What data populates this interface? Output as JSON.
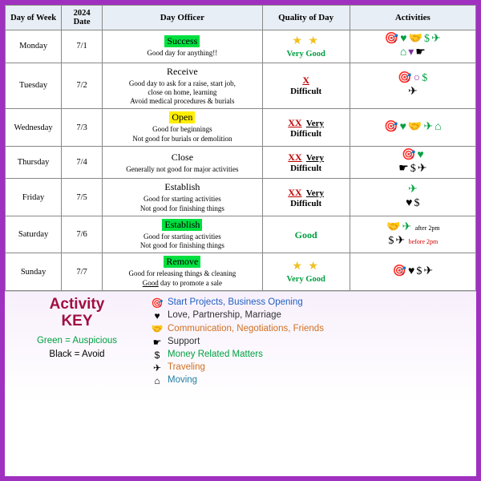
{
  "headers": {
    "day": "Day of Week",
    "date": "2024 Date",
    "officer": "Day Officer",
    "quality": "Quality of Day",
    "activities": "Activities"
  },
  "rows": [
    {
      "day": "Monday",
      "date": "7/1",
      "officer": "Success",
      "officer_hl": "hl-green",
      "desc": "Good day for anything!!",
      "quality_type": "stars",
      "stars": "★ ★",
      "quality_label": "Very Good",
      "quality_cls": "vg",
      "activities_html": "<span class='ic g'>🎯</span><span class='ic g'>♥</span><span class='ic g'>🤝</span><span class='ic g'>$</span><span class='ic g'>✈</span><br><span class='ic g'>⌂</span><span class='ic p'>▾</span><span class='ic k'>☛</span>"
    },
    {
      "day": "Tuesday",
      "date": "7/2",
      "officer": "Receive",
      "officer_hl": "",
      "desc": "Good day to ask for a raise, start job,<br>close on home, learning<br>Avoid medical procedures & burials",
      "quality_type": "x",
      "x": "X",
      "quality_label": "Difficult",
      "quality_cls": "",
      "activities_html": "<span class='ic g'>🎯</span><span class='ic p'>○</span><span class='ic g'>$</span><br><span class='ic k'>✈</span>"
    },
    {
      "day": "Wednesday",
      "date": "7/3",
      "officer": "Open",
      "officer_hl": "hl-yellow",
      "desc": "Good for beginnings<br>Not good for burials or demolition",
      "quality_type": "xx",
      "x": "XX",
      "vd1": "Very",
      "quality_label": "Difficult",
      "quality_cls": "",
      "activities_html": "<span class='ic g'>🎯</span><span class='ic g'>♥</span><span class='ic g'>🤝</span><span class='ic g'>✈</span><span class='ic g'>⌂</span>"
    },
    {
      "day": "Thursday",
      "date": "7/4",
      "officer": "Close",
      "officer_hl": "",
      "desc": "Generally not good for major activities",
      "quality_type": "xx",
      "x": "XX",
      "vd1": "Very",
      "quality_label": "Difficult",
      "quality_cls": "",
      "activities_html": "<span class='ic g'>🎯</span><span class='ic g'>♥</span><br><span class='ic k'>☛</span><span class='ic k'>$</span><span class='ic k'>✈</span>"
    },
    {
      "day": "Friday",
      "date": "7/5",
      "officer": "Establish",
      "officer_hl": "",
      "desc": "Good for starting activities<br>Not good for finishing things",
      "quality_type": "xx",
      "x": "XX",
      "vd1": "Very",
      "quality_label": "Difficult",
      "quality_cls": "",
      "activities_html": "<span class='ic g'>✈</span><br><span class='ic k'>♥</span><span class='ic k'>$</span>"
    },
    {
      "day": "Saturday",
      "date": "7/6",
      "officer": "Establish",
      "officer_hl": "hl-green",
      "desc": "Good for starting activities<br>Not good for finishing things",
      "quality_type": "good",
      "quality_label": "Good",
      "quality_cls": "good",
      "activities_html": "<span class='ic g'>🤝</span><span class='ic g'>✈</span> <span class='timing'>after 2pm</span><br><span class='ic k'>$</span><span class='ic k'>✈</span> <span class='timing red'>before 2pm</span>"
    },
    {
      "day": "Sunday",
      "date": "7/7",
      "officer": "Remove",
      "officer_hl": "hl-green",
      "desc": "Good for releasing things & cleaning<br><span class='underline'>Good</span> day to promote a sale",
      "quality_type": "stars",
      "stars": "★ ★",
      "quality_label": "Very Good",
      "quality_cls": "vg",
      "activities_html": "<span class='ic k'>🎯</span><span class='ic k'>♥</span><span class='ic k'>$</span><span class='ic k'>✈</span>"
    }
  ],
  "key": {
    "title1": "Activity",
    "title2": "KEY",
    "green": "Green = Auspicious",
    "black": "Black = Avoid",
    "items": [
      {
        "icon": "🎯",
        "text": "Start Projects, Business Opening",
        "cls": "c-blue"
      },
      {
        "icon": "♥",
        "text": "Love, Partnership, Marriage",
        "cls": "c-dark"
      },
      {
        "icon": "🤝",
        "text": "Communication, Negotiations, Friends",
        "cls": "c-orange"
      },
      {
        "icon": "☛",
        "text": "Support",
        "cls": "c-dark"
      },
      {
        "icon": "$",
        "text": "Money Related Matters",
        "cls": "c-green"
      },
      {
        "icon": "✈",
        "text": "Traveling",
        "cls": "c-orange"
      },
      {
        "icon": "⌂",
        "text": "Moving",
        "cls": "c-teal"
      }
    ]
  }
}
